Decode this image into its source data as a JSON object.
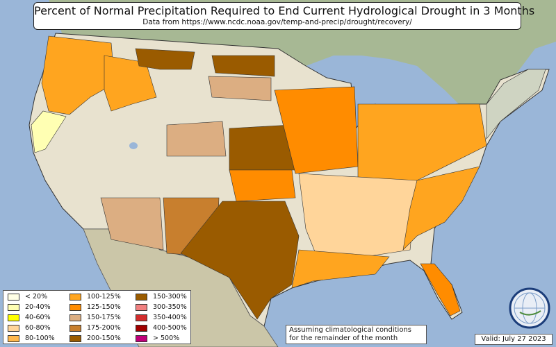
{
  "header": {
    "title": "Percent of Normal Precipitation Required to End Current Hydrological Drought in 3 Months",
    "subtitle": "Data from https://www.ncdc.noaa.gov/temp-and-precip/drought/recovery/"
  },
  "legend": {
    "items": [
      {
        "label": "< 20%",
        "color": "#ffffe6"
      },
      {
        "label": "20-40%",
        "color": "#ffffb3"
      },
      {
        "label": "40-60%",
        "color": "#ffff00"
      },
      {
        "label": "60-80%",
        "color": "#ffd59a"
      },
      {
        "label": "80-100%",
        "color": "#ffb84d"
      },
      {
        "label": "100-125%",
        "color": "#ffa51f"
      },
      {
        "label": "125-150%",
        "color": "#ff8c00"
      },
      {
        "label": "150-175%",
        "color": "#dcae82"
      },
      {
        "label": "175-200%",
        "color": "#c87f2e"
      },
      {
        "label": "200-150%",
        "color": "#9a5b00"
      },
      {
        "label": "150-300%",
        "color": "#9a5b00"
      },
      {
        "label": "300-350%",
        "color": "#f08080"
      },
      {
        "label": "350-400%",
        "color": "#d22d2d"
      },
      {
        "label": "400-500%",
        "color": "#a00000"
      },
      {
        "label": "> 500%",
        "color": "#c0007a"
      }
    ]
  },
  "note": {
    "line1": "Assuming climatological conditions",
    "line2": "for the remainder of the month"
  },
  "valid": "Valid: July 27 2023",
  "logo": {
    "text": "NEXLAB",
    "icon": "globe-icon"
  },
  "map": {
    "ocean_color": "#9ab6d8",
    "land_color": "#e8e2cf",
    "regions": [
      {
        "name": "pacific-northwest",
        "category": "100-125%"
      },
      {
        "name": "northern-california",
        "category": "20-40%"
      },
      {
        "name": "idaho",
        "category": "100-125%"
      },
      {
        "name": "montana",
        "category": "175-200%"
      },
      {
        "name": "north-dakota",
        "category": "200-150%"
      },
      {
        "name": "kansas-nebraska",
        "category": "200-150%"
      },
      {
        "name": "oklahoma",
        "category": "125-150%"
      },
      {
        "name": "texas",
        "category": "150-300%"
      },
      {
        "name": "new-mexico",
        "category": "150-300%"
      },
      {
        "name": "midwest",
        "category": "125-150%"
      },
      {
        "name": "southeast",
        "category": "100-125%"
      },
      {
        "name": "florida",
        "category": "125-150%"
      }
    ]
  }
}
